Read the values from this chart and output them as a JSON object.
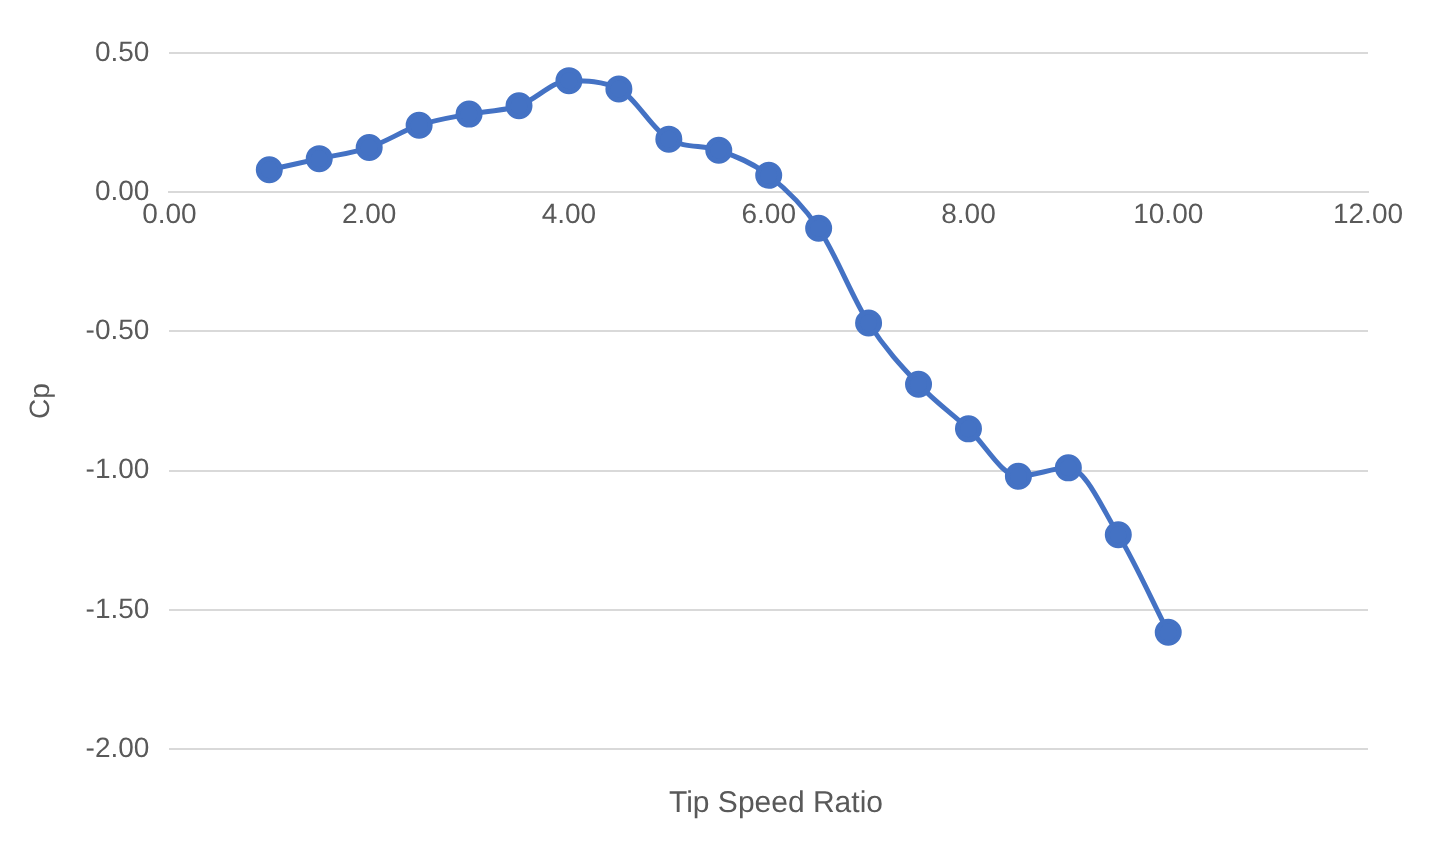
{
  "chart_data": {
    "type": "line",
    "xlabel": "Tip Speed Ratio",
    "ylabel": "Cp",
    "x": [
      1,
      1.5,
      2,
      2.5,
      3,
      3.5,
      4,
      4.5,
      5,
      5.5,
      6,
      6.5,
      7,
      7.5,
      8,
      8.5,
      9,
      9.5,
      10
    ],
    "series": [
      {
        "color": "#4472c4",
        "values": [
          0.08,
          0.12,
          0.16,
          0.24,
          0.28,
          0.31,
          0.4,
          0.37,
          0.19,
          0.15,
          0.06,
          -0.13,
          -0.47,
          -0.69,
          -0.85,
          -1.02,
          -0.99,
          -1.23,
          -1.58
        ]
      }
    ],
    "xlim": [
      0,
      12
    ],
    "xticks": [
      {
        "value": 0,
        "label": "0.00"
      },
      {
        "value": 2,
        "label": "2.00"
      },
      {
        "value": 4,
        "label": "4.00"
      },
      {
        "value": 6,
        "label": "6.00"
      },
      {
        "value": 8,
        "label": "8.00"
      },
      {
        "value": 10,
        "label": "10.00"
      },
      {
        "value": 12,
        "label": "12.00"
      }
    ],
    "ylim": [
      -2,
      0.5
    ],
    "yticks": [
      {
        "value": -2,
        "label": "-2.00"
      },
      {
        "value": -1.5,
        "label": "-1.50"
      },
      {
        "value": -1,
        "label": "-1.00"
      },
      {
        "value": -0.5,
        "label": "-0.50"
      },
      {
        "value": 0,
        "label": "0.00"
      },
      {
        "value": 0.5,
        "label": "0.50"
      }
    ],
    "grid": "y",
    "legend": false,
    "marker": "circle",
    "line_style": "solid"
  }
}
